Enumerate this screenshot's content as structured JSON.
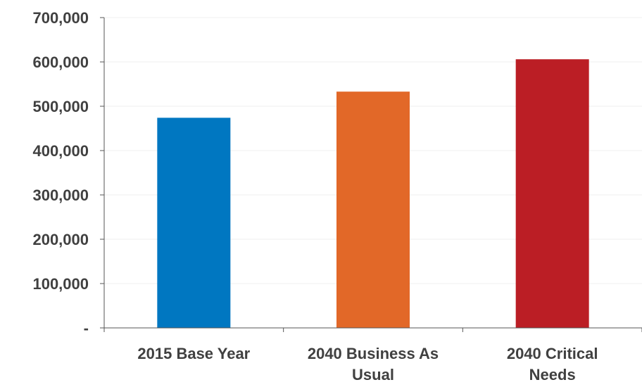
{
  "chart_data": {
    "type": "bar",
    "categories": [
      [
        "2015 Base Year"
      ],
      [
        "2040 Business As",
        "Usual"
      ],
      [
        "2040 Critical",
        "Needs"
      ]
    ],
    "values": [
      474000,
      533000,
      606000
    ],
    "colors": [
      "#0077c1",
      "#e26828",
      "#bb1e25"
    ],
    "ylim": [
      0,
      700000
    ],
    "yticks": [
      0,
      100000,
      200000,
      300000,
      400000,
      500000,
      600000,
      700000
    ],
    "ytick_labels": [
      "-",
      "100,000",
      "200,000",
      "300,000",
      "400,000",
      "500,000",
      "600,000",
      "700,000"
    ],
    "grid": true,
    "gridline_color": "#efefef",
    "axis_color": "#555555"
  }
}
